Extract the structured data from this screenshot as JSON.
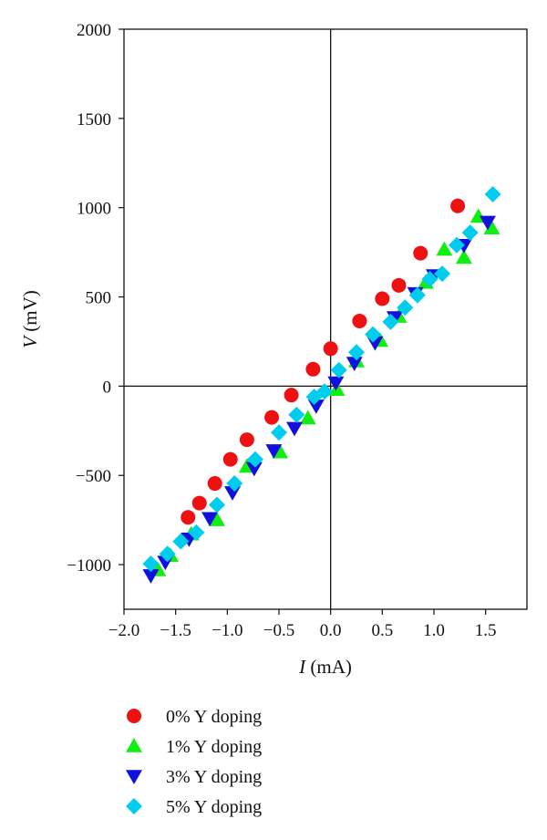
{
  "chart_data": {
    "type": "scatter",
    "title": "",
    "xlabel_symbol": "I",
    "xlabel_unit": " (mA)",
    "ylabel_symbol": "V",
    "ylabel_unit": " (mV)",
    "xlim": [
      -2.0,
      1.9
    ],
    "ylim": [
      -1250,
      2000
    ],
    "xticks": [
      -2.0,
      -1.5,
      -1.0,
      -0.5,
      0.0,
      0.5,
      1.0,
      1.5
    ],
    "xtick_labels": [
      "−2.0",
      "−1.5",
      "−1.0",
      "−0.5",
      "0.0",
      "0.5",
      "1.0",
      "1.5"
    ],
    "yticks": [
      -1000,
      -500,
      0,
      500,
      1000,
      1500,
      2000
    ],
    "ytick_labels": [
      "−1000",
      "−500",
      "0",
      "500",
      "1000",
      "1500",
      "2000"
    ],
    "grid": false,
    "zero_lines": true,
    "legend_position": "below",
    "series": [
      {
        "name": "0% Y doping",
        "marker": "circle",
        "color": "#ee1111",
        "points": [
          [
            -1.38,
            -735
          ],
          [
            -1.27,
            -655
          ],
          [
            -1.12,
            -545
          ],
          [
            -0.97,
            -410
          ],
          [
            -0.81,
            -300
          ],
          [
            -0.57,
            -175
          ],
          [
            -0.38,
            -50
          ],
          [
            -0.17,
            95
          ],
          [
            0.0,
            210
          ],
          [
            0.28,
            365
          ],
          [
            0.5,
            490
          ],
          [
            0.66,
            565
          ],
          [
            0.87,
            745
          ],
          [
            1.23,
            1010
          ]
        ]
      },
      {
        "name": "1% Y doping",
        "marker": "triangle-up",
        "color": "#11ee11",
        "points": [
          [
            -1.67,
            -1030
          ],
          [
            -1.55,
            -950
          ],
          [
            -1.35,
            -830
          ],
          [
            -1.1,
            -750
          ],
          [
            -0.81,
            -450
          ],
          [
            -0.49,
            -370
          ],
          [
            -0.22,
            -180
          ],
          [
            0.06,
            -20
          ],
          [
            0.25,
            140
          ],
          [
            0.48,
            255
          ],
          [
            0.66,
            390
          ],
          [
            0.92,
            580
          ],
          [
            1.1,
            765
          ],
          [
            1.29,
            720
          ],
          [
            1.43,
            950
          ],
          [
            1.56,
            885
          ]
        ]
      },
      {
        "name": "3% Y doping",
        "marker": "triangle-down",
        "color": "#1111dd",
        "points": [
          [
            -1.74,
            -1060
          ],
          [
            -1.6,
            -985
          ],
          [
            -1.37,
            -855
          ],
          [
            -1.17,
            -740
          ],
          [
            -0.95,
            -595
          ],
          [
            -0.74,
            -460
          ],
          [
            -0.55,
            -360
          ],
          [
            -0.35,
            -235
          ],
          [
            -0.14,
            -110
          ],
          [
            0.05,
            20
          ],
          [
            0.23,
            130
          ],
          [
            0.43,
            245
          ],
          [
            0.62,
            385
          ],
          [
            0.82,
            520
          ],
          [
            1.0,
            620
          ],
          [
            1.29,
            790
          ],
          [
            1.52,
            920
          ]
        ]
      },
      {
        "name": "5% Y doping",
        "marker": "diamond",
        "color": "#00ccee",
        "points": [
          [
            -1.74,
            -995
          ],
          [
            -1.58,
            -940
          ],
          [
            -1.45,
            -870
          ],
          [
            -1.3,
            -820
          ],
          [
            -1.1,
            -665
          ],
          [
            -0.93,
            -545
          ],
          [
            -0.73,
            -410
          ],
          [
            -0.5,
            -260
          ],
          [
            -0.33,
            -160
          ],
          [
            -0.16,
            -60
          ],
          [
            -0.06,
            -30
          ],
          [
            0.08,
            90
          ],
          [
            0.25,
            190
          ],
          [
            0.41,
            290
          ],
          [
            0.58,
            360
          ],
          [
            0.72,
            440
          ],
          [
            0.84,
            510
          ],
          [
            0.96,
            600
          ],
          [
            1.08,
            630
          ],
          [
            1.22,
            790
          ],
          [
            1.35,
            860
          ],
          [
            1.57,
            1075
          ]
        ]
      }
    ]
  }
}
